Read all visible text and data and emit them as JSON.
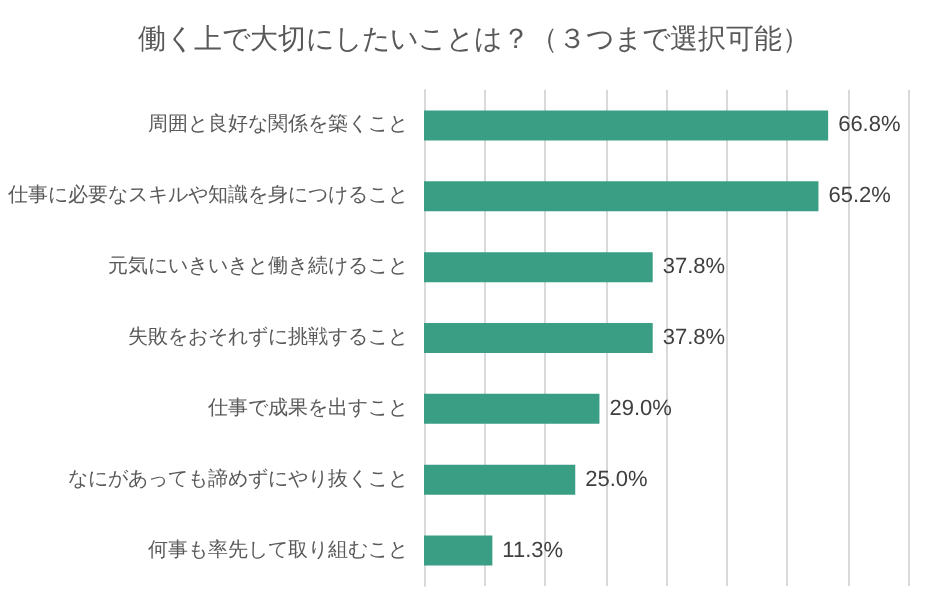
{
  "chart_data": {
    "type": "bar",
    "orientation": "horizontal",
    "title": "働く上で大切にしたいことは？（３つまで選択可能）",
    "categories": [
      "周囲と良好な関係を築くこと",
      "仕事に必要なスキルや知識を身につけること",
      "元気にいきいきと働き続けること",
      "失敗をおそれずに挑戦すること",
      "仕事で成果を出すこと",
      "なにがあっても諦めずにやり抜くこと",
      "何事も率先して取り組むこと"
    ],
    "values": [
      66.8,
      65.2,
      37.8,
      37.8,
      29.0,
      25.0,
      11.3
    ],
    "value_labels": [
      "66.8%",
      "65.2%",
      "37.8%",
      "37.8%",
      "29.0%",
      "25.0%",
      "11.3%"
    ],
    "color": "#3a9e85",
    "xlim": [
      0,
      80
    ],
    "xticks": [
      {
        "value": 0,
        "label": null
      },
      {
        "value": 10,
        "label": null
      },
      {
        "value": 20,
        "label": null
      },
      {
        "value": 30,
        "label": null
      },
      {
        "value": 40,
        "label": null
      },
      {
        "value": 50,
        "label": null
      },
      {
        "value": 60,
        "label": null
      },
      {
        "value": 70,
        "label": null
      },
      {
        "value": 80,
        "label": null
      }
    ],
    "tick_labels": "y",
    "grid": "x"
  }
}
